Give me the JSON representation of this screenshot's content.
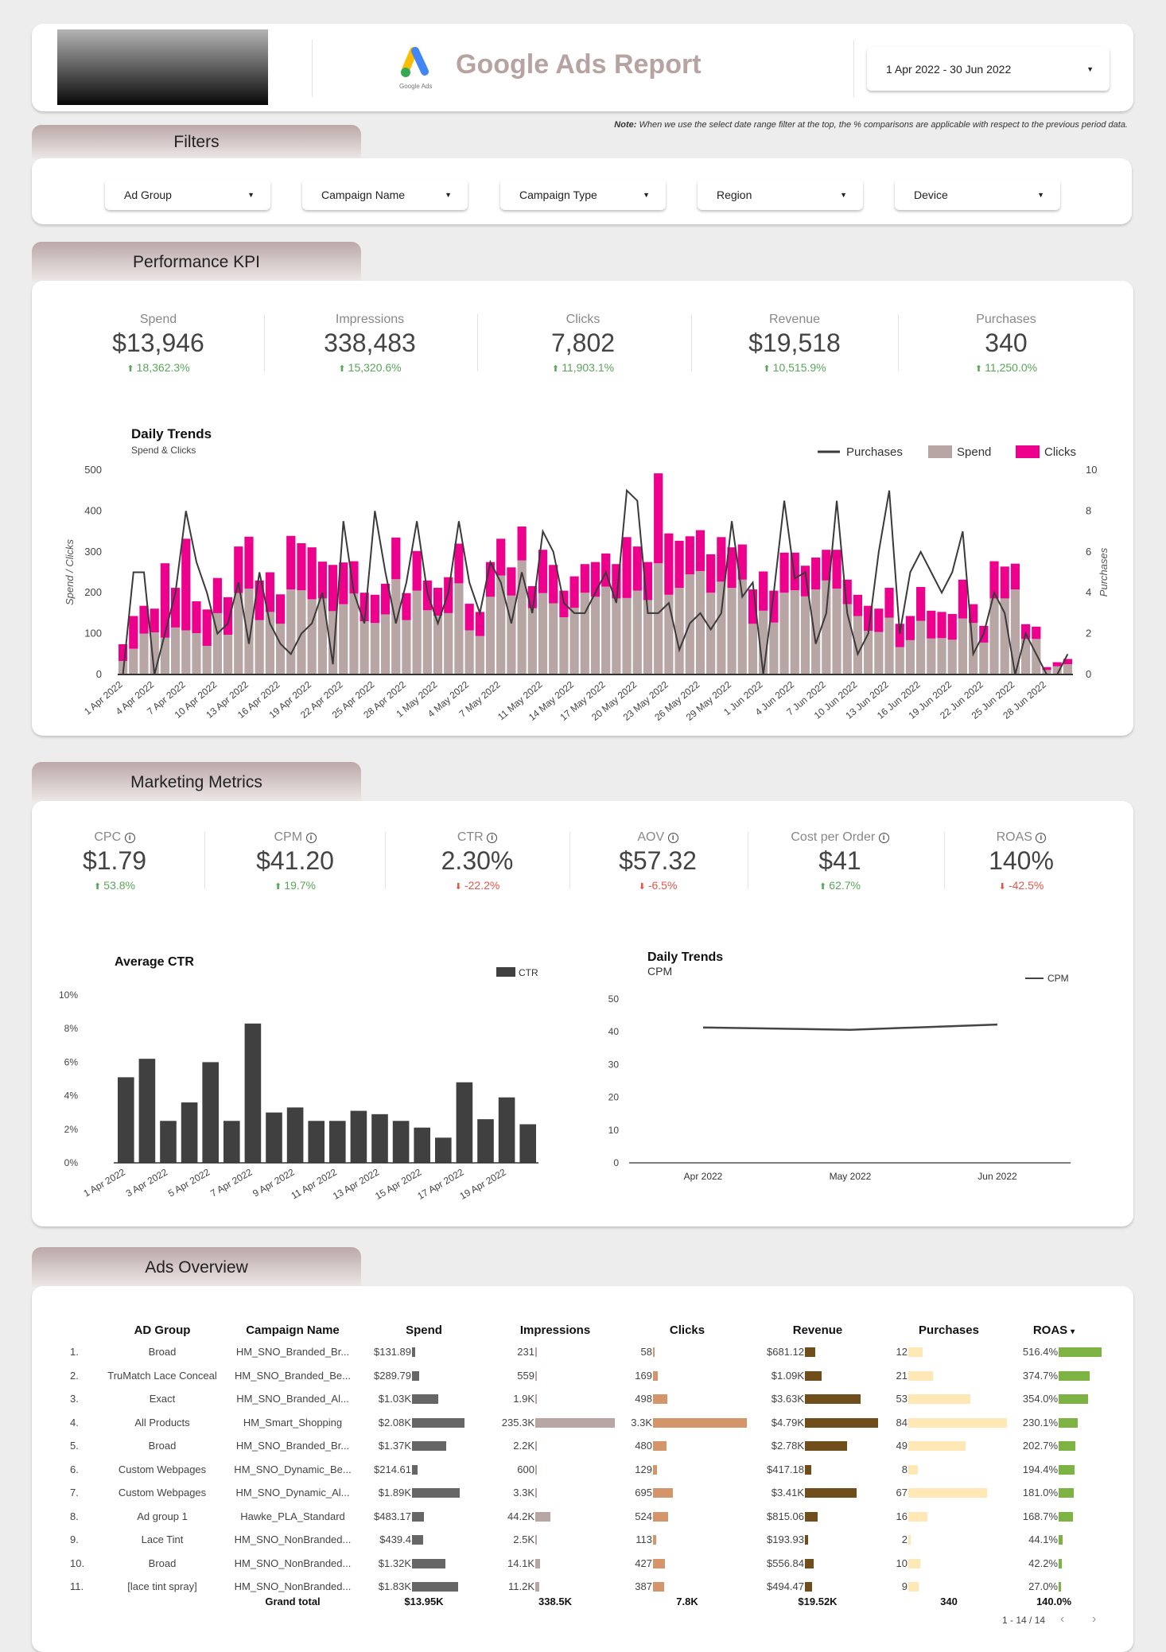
{
  "header": {
    "title": "Google Ads Report",
    "logo_caption": "Google Ads",
    "date_range": "1 Apr 2022 - 30 Jun 2022"
  },
  "note": {
    "label": "Note:",
    "text": "When we use the select date range filter at the top, the % comparisons are applicable with respect to the previous period data."
  },
  "filters": {
    "tab": "Filters",
    "items": [
      "Ad Group",
      "Campaign Name",
      "Campaign Type",
      "Region",
      "Device"
    ]
  },
  "performance": {
    "tab": "Performance KPI",
    "kpis": [
      {
        "label": "Spend",
        "value": "$13,946",
        "delta": "18,362.3%",
        "dir": "up"
      },
      {
        "label": "Impressions",
        "value": "338,483",
        "delta": "15,320.6%",
        "dir": "up"
      },
      {
        "label": "Clicks",
        "value": "7,802",
        "delta": "11,903.1%",
        "dir": "up"
      },
      {
        "label": "Revenue",
        "value": "$19,518",
        "delta": "10,515.9%",
        "dir": "up"
      },
      {
        "label": "Purchases",
        "value": "340",
        "delta": "11,250.0%",
        "dir": "up"
      }
    ]
  },
  "marketing": {
    "tab": "Marketing Metrics",
    "metrics": [
      {
        "label": "CPC",
        "value": "$1.79",
        "delta": "53.8%",
        "dir": "up"
      },
      {
        "label": "CPM",
        "value": "$41.20",
        "delta": "19.7%",
        "dir": "up"
      },
      {
        "label": "CTR",
        "value": "2.30%",
        "delta": "-22.2%",
        "dir": "down"
      },
      {
        "label": "AOV",
        "value": "$57.32",
        "delta": "-6.5%",
        "dir": "down"
      },
      {
        "label": "Cost per Order",
        "value": "$41",
        "delta": "62.7%",
        "dir": "up"
      },
      {
        "label": "ROAS",
        "value": "140%",
        "delta": "-42.5%",
        "dir": "down"
      }
    ]
  },
  "colors": {
    "spend": "#b7a6a3",
    "clicks": "#ec008c",
    "line": "#3a3a3a",
    "ctr": "#404040",
    "up": "#5aa55a",
    "down": "#e0584a"
  },
  "chart_data": [
    {
      "type": "bar",
      "title": "Daily Trends",
      "subtitle": "Spend & Clicks",
      "ylabel": "Spend / Clicks",
      "y2label": "Purchases",
      "ylim": [
        0,
        500
      ],
      "y2lim": [
        0,
        10
      ],
      "yticks": [
        "0",
        "100",
        "200",
        "300",
        "400",
        "500"
      ],
      "y2ticks": [
        "0",
        "2",
        "4",
        "6",
        "8",
        "10"
      ],
      "legend": "top-right",
      "stacked": true,
      "categories": [
        "1 Apr 2022",
        "2 Apr 2022",
        "3 Apr 2022",
        "4 Apr 2022",
        "5 Apr 2022",
        "6 Apr 2022",
        "7 Apr 2022",
        "8 Apr 2022",
        "9 Apr 2022",
        "10 Apr 2022",
        "11 Apr 2022",
        "12 Apr 2022",
        "13 Apr 2022",
        "14 Apr 2022",
        "15 Apr 2022",
        "16 Apr 2022",
        "17 Apr 2022",
        "18 Apr 2022",
        "19 Apr 2022",
        "20 Apr 2022",
        "21 Apr 2022",
        "22 Apr 2022",
        "23 Apr 2022",
        "24 Apr 2022",
        "25 Apr 2022",
        "26 Apr 2022",
        "27 Apr 2022",
        "28 Apr 2022",
        "29 Apr 2022",
        "30 Apr 2022",
        "1 May 2022",
        "2 May 2022",
        "3 May 2022",
        "4 May 2022",
        "5 May 2022",
        "6 May 2022",
        "7 May 2022",
        "8 May 2022",
        "9 May 2022",
        "10 May 2022",
        "11 May 2022",
        "12 May 2022",
        "13 May 2022",
        "14 May 2022",
        "15 May 2022",
        "16 May 2022",
        "17 May 2022",
        "18 May 2022",
        "19 May 2022",
        "20 May 2022",
        "21 May 2022",
        "22 May 2022",
        "23 May 2022",
        "24 May 2022",
        "25 May 2022",
        "26 May 2022",
        "27 May 2022",
        "28 May 2022",
        "29 May 2022",
        "30 May 2022",
        "31 May 2022",
        "1 Jun 2022",
        "2 Jun 2022",
        "3 Jun 2022",
        "4 Jun 2022",
        "5 Jun 2022",
        "6 Jun 2022",
        "7 Jun 2022",
        "8 Jun 2022",
        "9 Jun 2022",
        "10 Jun 2022",
        "11 Jun 2022",
        "12 Jun 2022",
        "13 Jun 2022",
        "14 Jun 2022",
        "15 Jun 2022",
        "16 Jun 2022",
        "17 Jun 2022",
        "18 Jun 2022",
        "19 Jun 2022",
        "20 Jun 2022",
        "21 Jun 2022",
        "22 Jun 2022",
        "23 Jun 2022",
        "24 Jun 2022",
        "25 Jun 2022",
        "26 Jun 2022",
        "27 Jun 2022",
        "28 Jun 2022",
        "29 Jun 2022",
        "30 Jun 2022"
      ],
      "tick_labels": [
        "1 Apr 2022",
        "4 Apr 2022",
        "7 Apr 2022",
        "10 Apr 2022",
        "13 Apr 2022",
        "16 Apr 2022",
        "19 Apr 2022",
        "22 Apr 2022",
        "25 Apr 2022",
        "28 Apr 2022",
        "1 May 2022",
        "4 May 2022",
        "7 May 2022",
        "11 May 2022",
        "14 May 2022",
        "17 May 2022",
        "20 May 2022",
        "23 May 2022",
        "26 May 2022",
        "29 May 2022",
        "1 Jun 2022",
        "4 Jun 2022",
        "7 Jun 2022",
        "10 Jun 2022",
        "13 Jun 2022",
        "16 Jun 2022",
        "19 Jun 2022",
        "22 Jun 2022",
        "25 Jun 2022",
        "28 Jun 2022"
      ],
      "series": [
        {
          "name": "Spend",
          "type": "bar",
          "values": [
            33,
            63,
            100,
            103,
            90,
            115,
            108,
            101,
            70,
            150,
            97,
            199,
            210,
            133,
            153,
            124,
            208,
            206,
            184,
            186,
            155,
            172,
            198,
            130,
            126,
            147,
            233,
            133,
            205,
            157,
            144,
            150,
            223,
            108,
            94,
            190,
            242,
            193,
            279,
            162,
            199,
            174,
            140,
            163,
            200,
            190,
            215,
            186,
            187,
            205,
            182,
            272,
            195,
            212,
            245,
            253,
            200,
            227,
            212,
            232,
            124,
            156,
            127,
            200,
            206,
            191,
            208,
            230,
            210,
            172,
            143,
            107,
            104,
            139,
            67,
            84,
            131,
            88,
            89,
            85,
            137,
            126,
            78,
            186,
            186,
            208,
            87,
            87,
            11,
            20,
            25
          ]
        },
        {
          "name": "Clicks",
          "type": "bar",
          "values": [
            41,
            80,
            68,
            58,
            182,
            97,
            224,
            78,
            89,
            86,
            92,
            114,
            127,
            97,
            97,
            72,
            131,
            115,
            127,
            90,
            113,
            102,
            79,
            70,
            69,
            75,
            102,
            66,
            97,
            73,
            68,
            88,
            97,
            65,
            59,
            85,
            90,
            69,
            83,
            54,
            106,
            94,
            65,
            77,
            70,
            85,
            81,
            84,
            149,
            108,
            93,
            220,
            150,
            115,
            93,
            100,
            94,
            109,
            99,
            86,
            84,
            96,
            78,
            98,
            92,
            75,
            78,
            75,
            95,
            60,
            52,
            61,
            57,
            73,
            57,
            59,
            83,
            68,
            64,
            63,
            95,
            46,
            41,
            91,
            78,
            63,
            36,
            30,
            7,
            10,
            13
          ]
        },
        {
          "name": "Purchases",
          "type": "line",
          "axis": "right",
          "values": [
            0,
            5,
            5,
            0,
            2,
            4,
            8,
            5.5,
            4,
            2,
            2.5,
            4.5,
            1.5,
            5,
            2.5,
            1.5,
            1,
            2,
            2.5,
            4,
            0.5,
            7.5,
            4,
            2.5,
            8,
            5,
            2.5,
            4.5,
            7.5,
            4,
            2.5,
            4,
            7.5,
            4.5,
            3,
            5.5,
            4.5,
            2.5,
            5,
            3,
            7,
            6,
            3.5,
            3,
            3,
            4,
            5,
            3.5,
            9,
            8.5,
            3,
            3,
            3.5,
            1.2,
            2.5,
            3,
            2.2,
            3,
            7.5,
            3.8,
            4.5,
            0,
            4,
            8.5,
            4.7,
            5,
            1.5,
            3,
            8.5,
            3,
            1,
            2,
            6,
            9,
            2,
            5,
            6,
            5,
            4,
            5,
            7,
            1,
            2,
            4,
            3,
            0,
            2,
            1,
            0,
            0,
            1
          ]
        }
      ]
    },
    {
      "type": "bar",
      "title": "Average CTR",
      "ylim": [
        0,
        10
      ],
      "yticks": [
        "0%",
        "2%",
        "4%",
        "6%",
        "8%",
        "10%"
      ],
      "legend": "top-right",
      "categories": [
        "1 Apr 2022",
        "2 Apr 2022",
        "3 Apr 2022",
        "4 Apr 2022",
        "5 Apr 2022",
        "6 Apr 2022",
        "7 Apr 2022",
        "8 Apr 2022",
        "9 Apr 2022",
        "10 Apr 2022",
        "11 Apr 2022",
        "12 Apr 2022",
        "13 Apr 2022",
        "14 Apr 2022",
        "15 Apr 2022",
        "16 Apr 2022",
        "17 Apr 2022",
        "18 Apr 2022",
        "19 Apr 2022",
        "20 Apr 2022"
      ],
      "tick_labels": [
        "1 Apr 2022",
        "3 Apr 2022",
        "5 Apr 2022",
        "7 Apr 2022",
        "9 Apr 2022",
        "11 Apr 2022",
        "13 Apr 2022",
        "15 Apr 2022",
        "17 Apr 2022",
        "19 Apr 2022"
      ],
      "series": [
        {
          "name": "CTR",
          "values": [
            5.1,
            6.2,
            2.5,
            3.6,
            6.0,
            2.5,
            8.3,
            3.0,
            3.3,
            2.5,
            2.5,
            3.1,
            2.9,
            2.5,
            2.1,
            1.5,
            4.8,
            2.6,
            3.9,
            2.3
          ]
        }
      ]
    },
    {
      "type": "line",
      "title": "Daily Trends",
      "subtitle": "CPM",
      "ylim": [
        0,
        50
      ],
      "yticks": [
        "0",
        "10",
        "20",
        "30",
        "40",
        "50"
      ],
      "legend": "top-right",
      "categories": [
        "Apr 2022",
        "May 2022",
        "Jun 2022"
      ],
      "series": [
        {
          "name": "CPM",
          "values": [
            41.3,
            40.6,
            42.2
          ]
        }
      ]
    }
  ],
  "ads": {
    "tab": "Ads Overview",
    "columns": [
      "AD Group",
      "Campaign Name",
      "Spend",
      "Impressions",
      "Clicks",
      "Revenue",
      "Purchases",
      "ROAS"
    ],
    "sort_indicator": "▾",
    "rows": [
      {
        "n": "1.",
        "group": "Broad",
        "campaign": "HM_SNO_Branded_Br...",
        "spend": "$131.89",
        "spend_v": 131.89,
        "impr": "231",
        "impr_v": 231,
        "clicks": "58",
        "clicks_v": 58,
        "rev": "$681.12",
        "rev_v": 681.12,
        "purch": "12",
        "purch_v": 12,
        "roas": "516.4%",
        "roas_v": 516.4
      },
      {
        "n": "2.",
        "group": "TruMatch Lace Conceal",
        "campaign": "HM_SNO_Branded_Be...",
        "spend": "$289.79",
        "spend_v": 289.79,
        "impr": "559",
        "impr_v": 559,
        "clicks": "169",
        "clicks_v": 169,
        "rev": "$1.09K",
        "rev_v": 1090,
        "purch": "21",
        "purch_v": 21,
        "roas": "374.7%",
        "roas_v": 374.7
      },
      {
        "n": "3.",
        "group": "Exact",
        "campaign": "HM_SNO_Branded_Al...",
        "spend": "$1.03K",
        "spend_v": 1030,
        "impr": "1.9K",
        "impr_v": 1900,
        "clicks": "498",
        "clicks_v": 498,
        "rev": "$3.63K",
        "rev_v": 3630,
        "purch": "53",
        "purch_v": 53,
        "roas": "354.0%",
        "roas_v": 354.0
      },
      {
        "n": "4.",
        "group": "All Products",
        "campaign": "HM_Smart_Shopping",
        "spend": "$2.08K",
        "spend_v": 2080,
        "impr": "235.3K",
        "impr_v": 235300,
        "clicks": "3.3K",
        "clicks_v": 3300,
        "rev": "$4.79K",
        "rev_v": 4790,
        "purch": "84",
        "purch_v": 84,
        "roas": "230.1%",
        "roas_v": 230.1
      },
      {
        "n": "5.",
        "group": "Broad",
        "campaign": "HM_SNO_Branded_Br...",
        "spend": "$1.37K",
        "spend_v": 1370,
        "impr": "2.2K",
        "impr_v": 2200,
        "clicks": "480",
        "clicks_v": 480,
        "rev": "$2.78K",
        "rev_v": 2780,
        "purch": "49",
        "purch_v": 49,
        "roas": "202.7%",
        "roas_v": 202.7
      },
      {
        "n": "6.",
        "group": "Custom Webpages",
        "campaign": "HM_SNO_Dynamic_Be...",
        "spend": "$214.61",
        "spend_v": 214.61,
        "impr": "600",
        "impr_v": 600,
        "clicks": "129",
        "clicks_v": 129,
        "rev": "$417.18",
        "rev_v": 417.18,
        "purch": "8",
        "purch_v": 8,
        "roas": "194.4%",
        "roas_v": 194.4
      },
      {
        "n": "7.",
        "group": "Custom Webpages",
        "campaign": "HM_SNO_Dynamic_Al...",
        "spend": "$1.89K",
        "spend_v": 1890,
        "impr": "3.3K",
        "impr_v": 3300,
        "clicks": "695",
        "clicks_v": 695,
        "rev": "$3.41K",
        "rev_v": 3410,
        "purch": "67",
        "purch_v": 67,
        "roas": "181.0%",
        "roas_v": 181.0
      },
      {
        "n": "8.",
        "group": "Ad group 1",
        "campaign": "Hawke_PLA_Standard",
        "spend": "$483.17",
        "spend_v": 483.17,
        "impr": "44.2K",
        "impr_v": 44200,
        "clicks": "524",
        "clicks_v": 524,
        "rev": "$815.06",
        "rev_v": 815.06,
        "purch": "16",
        "purch_v": 16,
        "roas": "168.7%",
        "roas_v": 168.7
      },
      {
        "n": "9.",
        "group": "Lace Tint",
        "campaign": "HM_SNO_NonBranded...",
        "spend": "$439.4",
        "spend_v": 439.4,
        "impr": "2.5K",
        "impr_v": 2500,
        "clicks": "113",
        "clicks_v": 113,
        "rev": "$193.93",
        "rev_v": 193.93,
        "purch": "2",
        "purch_v": 2,
        "roas": "44.1%",
        "roas_v": 44.1
      },
      {
        "n": "10.",
        "group": "Broad",
        "campaign": "HM_SNO_NonBranded...",
        "spend": "$1.32K",
        "spend_v": 1320,
        "impr": "14.1K",
        "impr_v": 14100,
        "clicks": "427",
        "clicks_v": 427,
        "rev": "$556.84",
        "rev_v": 556.84,
        "purch": "10",
        "purch_v": 10,
        "roas": "42.2%",
        "roas_v": 42.2
      },
      {
        "n": "11.",
        "group": "[lace tint spray]",
        "campaign": "HM_SNO_NonBranded...",
        "spend": "$1.83K",
        "spend_v": 1830,
        "impr": "11.2K",
        "impr_v": 11200,
        "clicks": "387",
        "clicks_v": 387,
        "rev": "$494.47",
        "rev_v": 494.47,
        "purch": "9",
        "purch_v": 9,
        "roas": "27.0%",
        "roas_v": 27.0
      }
    ],
    "totals": {
      "label": "Grand total",
      "spend": "$13.95K",
      "impr": "338.5K",
      "clicks": "7.8K",
      "rev": "$19.52K",
      "purch": "340",
      "roas": "140.0%"
    },
    "pagination": "1 - 14 / 14",
    "bar_colors": {
      "spend": "#666666",
      "impr": "#b7a6a3",
      "clicks": "#d4956a",
      "rev": "#6f4e1c",
      "purch": "#ffe8b5",
      "roas": "#7cb342"
    }
  }
}
